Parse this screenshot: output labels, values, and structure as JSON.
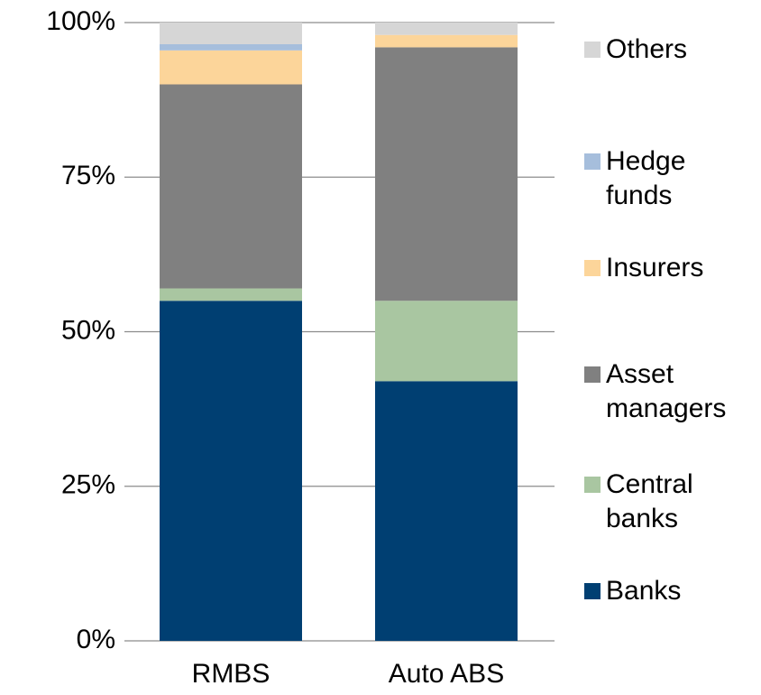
{
  "chart_data": {
    "type": "stacked_bar",
    "categories": [
      "RMBS",
      "Auto ABS"
    ],
    "series": [
      {
        "name": "Banks",
        "color": "#003f72",
        "values": [
          55,
          42
        ]
      },
      {
        "name": "Central banks",
        "color": "#a9c6a1",
        "values": [
          2,
          13
        ]
      },
      {
        "name": "Asset managers",
        "color": "#808080",
        "values": [
          33,
          41
        ]
      },
      {
        "name": "Insurers",
        "color": "#fcd59a",
        "values": [
          5.5,
          2
        ]
      },
      {
        "name": "Hedge funds",
        "color": "#a6bedc",
        "values": [
          1,
          0
        ]
      },
      {
        "name": "Others",
        "color": "#d6d6d6",
        "values": [
          3.5,
          2
        ]
      }
    ],
    "ylim": [
      0,
      100
    ],
    "yticks": [
      {
        "value": 0,
        "label": "0%"
      },
      {
        "value": 25,
        "label": "25%"
      },
      {
        "value": 50,
        "label": "50%"
      },
      {
        "value": 75,
        "label": "75%"
      },
      {
        "value": 100,
        "label": "100%"
      }
    ],
    "grid": true,
    "legend": "right"
  }
}
